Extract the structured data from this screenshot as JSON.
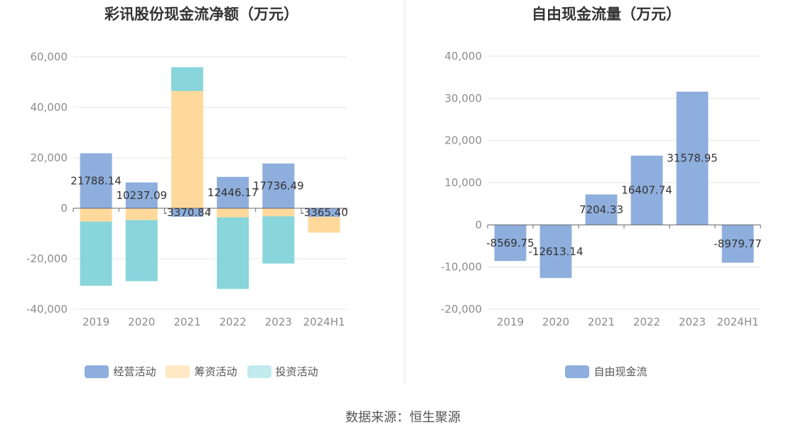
{
  "source_text": "数据来源：恒生聚源",
  "colors": {
    "operating": "#8eaedd",
    "financing": "#ffd99b",
    "investing": "#88d5db",
    "fcf": "#8eaedd"
  },
  "chart_data": [
    {
      "type": "bar",
      "stacked": true,
      "title": "彩讯股份现金流净额（万元）",
      "categories": [
        "2019",
        "2020",
        "2021",
        "2022",
        "2023",
        "2024H1"
      ],
      "ylim": [
        -40000,
        60000
      ],
      "yticks": [
        "60,000",
        "40,000",
        "20,000",
        "0",
        "-20,000",
        "-40,000"
      ],
      "series": [
        {
          "name": "经营活动",
          "values": [
            21788.14,
            10237.09,
            -3370.84,
            12446.17,
            17736.49,
            -3365.4
          ],
          "labels": [
            "21788.14",
            "10237.09",
            "-3370.84",
            "12446.17",
            "17736.49",
            "-3365.40"
          ]
        },
        {
          "name": "筹资活动",
          "values": [
            -5300,
            -4700,
            46500,
            -3600,
            -3200,
            -6300
          ]
        },
        {
          "name": "投资活动",
          "values": [
            -25400,
            -24200,
            9400,
            -28400,
            -18700,
            0
          ]
        }
      ],
      "legend_position": "bottom",
      "grid": true
    },
    {
      "type": "bar",
      "title": "自由现金流量（万元）",
      "categories": [
        "2019",
        "2020",
        "2021",
        "2022",
        "2023",
        "2024H1"
      ],
      "ylim": [
        -20000,
        40000
      ],
      "yticks": [
        "40,000",
        "30,000",
        "20,000",
        "10,000",
        "0",
        "-10,000",
        "-20,000"
      ],
      "series": [
        {
          "name": "自由现金流",
          "values": [
            -8569.75,
            -12613.14,
            7204.33,
            16407.74,
            31578.95,
            -8979.77
          ],
          "labels": [
            "-8569.75",
            "-12613.14",
            "7204.33",
            "16407.74",
            "31578.95",
            "-8979.77"
          ]
        }
      ],
      "legend_position": "bottom",
      "grid": true
    }
  ]
}
